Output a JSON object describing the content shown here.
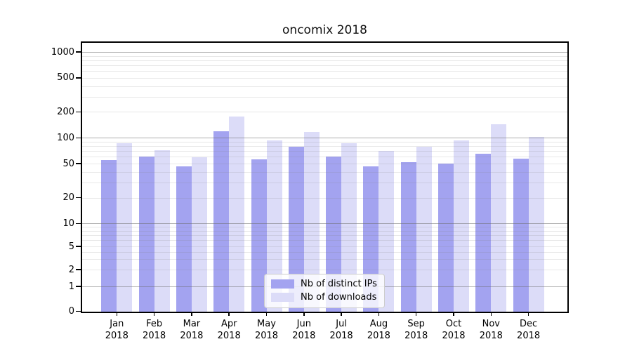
{
  "title": "oncomix 2018",
  "chart_data": {
    "type": "bar",
    "title": "oncomix 2018",
    "categories": [
      "Jan",
      "Feb",
      "Mar",
      "Apr",
      "May",
      "Jun",
      "Jul",
      "Aug",
      "Sep",
      "Oct",
      "Nov",
      "Dec"
    ],
    "year_label": "2018",
    "series": [
      {
        "name": "Nb of distinct IPs",
        "color": "#a3a3f0",
        "values": [
          55,
          61,
          46,
          119,
          56,
          78,
          61,
          46,
          52,
          50,
          65,
          57
        ]
      },
      {
        "name": "Nb of downloads",
        "color": "#dcdcf8",
        "values": [
          87,
          71,
          59,
          177,
          93,
          117,
          86,
          70,
          78,
          93,
          145,
          103
        ]
      }
    ],
    "xlabel": "",
    "ylabel": "",
    "y_axis_ticks": [
      1000,
      500,
      200,
      100,
      50,
      20,
      10,
      5,
      2,
      1,
      0
    ],
    "scale": "symlog",
    "ylim": [
      0,
      1280
    ],
    "grid": "major-and-minor",
    "legend_position": "lower center"
  },
  "legend": {
    "items": [
      {
        "label": "Nb of distinct IPs"
      },
      {
        "label": "Nb of downloads"
      }
    ]
  },
  "colors": {
    "bar_distinct_ips": "#a3a3f0",
    "bar_downloads": "#dcdcf8",
    "grid_major": "#b3b3b3",
    "grid_minor": "#e8e8e8",
    "spine": "#000000",
    "background": "#ffffff",
    "legend_border": "#cccccc"
  }
}
